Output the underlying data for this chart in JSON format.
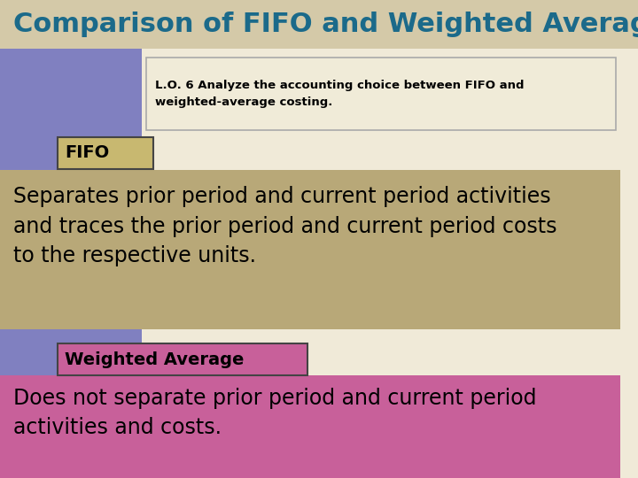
{
  "title": "Comparison of FIFO and Weighted Average",
  "title_color": "#1b6a8a",
  "title_bg": "#d4c9a8",
  "title_fontsize": 22,
  "lo_text": "L.O. 6 Analyze the accounting choice between FIFO and\nweighted-average costing.",
  "lo_box_bg": "#f0ebd8",
  "lo_box_border": "#aaaaaa",
  "fifo_label": "FIFO",
  "fifo_label_bg": "#c8b870",
  "fifo_label_border": "#444444",
  "fifo_text": "Separates prior period and current period activities\nand traces the prior period and current period costs\nto the respective units.",
  "fifo_text_bg": "#b8a878",
  "wa_label": "Weighted Average",
  "wa_label_bg": "#c8609a",
  "wa_label_border": "#444444",
  "wa_text": "Does not separate prior period and current period\nactivities and costs.",
  "wa_text_bg": "#c8609a",
  "left_bar_color": "#8080c0",
  "bg_color": "#f0ead8",
  "fig_width": 7.2,
  "fig_height": 5.4,
  "dpi": 100
}
